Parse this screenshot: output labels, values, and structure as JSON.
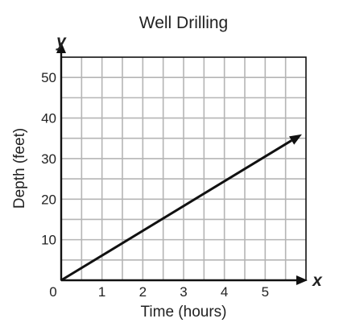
{
  "chart_data": {
    "type": "line",
    "title": "Well Drilling",
    "xlabel": "Time (hours)",
    "ylabel": "Depth (feet)",
    "x_axis_letter": "x",
    "y_axis_letter": "y",
    "origin_label": "0",
    "xlim": [
      0,
      6
    ],
    "ylim": [
      0,
      55
    ],
    "x_ticks": [
      {
        "value": 1,
        "label": "1"
      },
      {
        "value": 2,
        "label": "2"
      },
      {
        "value": 3,
        "label": "3"
      },
      {
        "value": 4,
        "label": "4"
      },
      {
        "value": 5,
        "label": "5"
      }
    ],
    "y_ticks": [
      {
        "value": 10,
        "label": "10"
      },
      {
        "value": 20,
        "label": "20"
      },
      {
        "value": 30,
        "label": "30"
      },
      {
        "value": 40,
        "label": "40"
      },
      {
        "value": 50,
        "label": "50"
      }
    ],
    "grid": true,
    "grid_minor_x": 0.5,
    "grid_minor_y": 5,
    "series": [
      {
        "x": [
          0,
          5.9
        ],
        "y": [
          0,
          36
        ],
        "arrow_end": true
      }
    ],
    "colors": {
      "grid": "#b5b5b5",
      "frame": "#111111",
      "line": "#111111"
    }
  }
}
